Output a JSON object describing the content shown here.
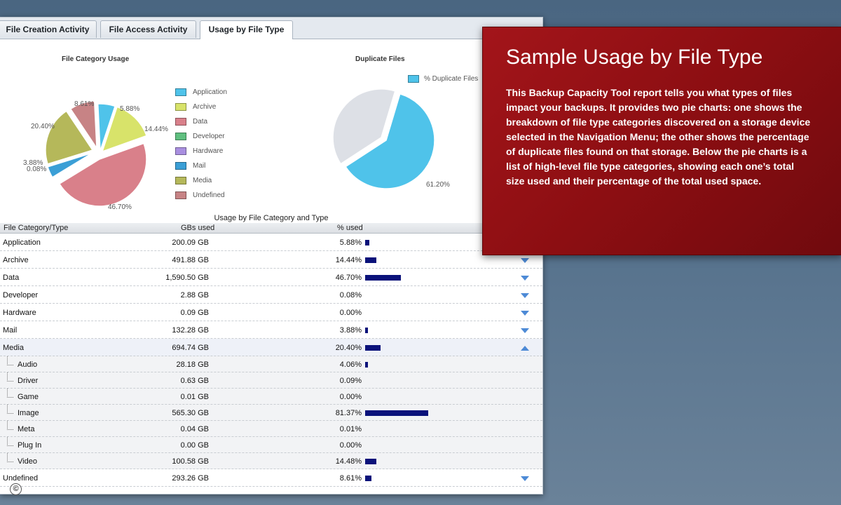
{
  "tabs": [
    {
      "label": "File Creation Activity"
    },
    {
      "label": "File Access Activity"
    },
    {
      "label": "Usage by File Type"
    }
  ],
  "pie1": {
    "title": "File Category Usage",
    "legend": [
      "Application",
      "Archive",
      "Data",
      "Developer",
      "Hardware",
      "Mail",
      "Media",
      "Undefined"
    ],
    "labels": [
      "5.88%",
      "14.44%",
      "46.70%",
      "0.08%",
      "3.88%",
      "20.40%",
      "8.61%"
    ]
  },
  "pie2": {
    "title": "Duplicate Files",
    "legend": "% Duplicate Files",
    "label": "61.20%"
  },
  "chart_data": [
    {
      "type": "pie",
      "title": "File Category Usage",
      "categories": [
        "Application",
        "Archive",
        "Data",
        "Developer",
        "Hardware",
        "Mail",
        "Media",
        "Undefined"
      ],
      "values": [
        5.88,
        14.44,
        46.7,
        0.08,
        0.0,
        3.88,
        20.4,
        8.61
      ],
      "colors": [
        "#4fc3ea",
        "#d8e36a",
        "#d9808a",
        "#5fbf7f",
        "#a98fe0",
        "#3b9fd6",
        "#b5b85a",
        "#c78385"
      ],
      "legend_position": "right"
    },
    {
      "type": "pie",
      "title": "Duplicate Files",
      "categories": [
        "% Duplicate Files",
        ""
      ],
      "values": [
        61.2,
        38.8
      ],
      "colors": [
        "#4fc3ea",
        "#dde0e6"
      ],
      "legend_position": "top-right"
    }
  ],
  "table": {
    "caption": "Usage by File Category and Type",
    "headers": [
      "File Category/Type",
      "GBs used",
      "% used"
    ],
    "rows": [
      {
        "name": "Application",
        "gb": "200.09 GB",
        "pct": "5.88%",
        "value": 5.88,
        "level": 0,
        "toggle": "down"
      },
      {
        "name": "Archive",
        "gb": "491.88 GB",
        "pct": "14.44%",
        "value": 14.44,
        "level": 0,
        "toggle": "down"
      },
      {
        "name": "Data",
        "gb": "1,590.50 GB",
        "pct": "46.70%",
        "value": 46.7,
        "level": 0,
        "toggle": "down"
      },
      {
        "name": "Developer",
        "gb": "2.88 GB",
        "pct": "0.08%",
        "value": 0.08,
        "level": 0,
        "toggle": "down"
      },
      {
        "name": "Hardware",
        "gb": "0.09 GB",
        "pct": "0.00%",
        "value": 0.0,
        "level": 0,
        "toggle": "down"
      },
      {
        "name": "Mail",
        "gb": "132.28 GB",
        "pct": "3.88%",
        "value": 3.88,
        "level": 0,
        "toggle": "down"
      },
      {
        "name": "Media",
        "gb": "694.74 GB",
        "pct": "20.40%",
        "value": 20.4,
        "level": 0,
        "toggle": "up"
      },
      {
        "name": "Audio",
        "gb": "28.18 GB",
        "pct": "4.06%",
        "value": 4.06,
        "level": 1,
        "toggle": ""
      },
      {
        "name": "Driver",
        "gb": "0.63 GB",
        "pct": "0.09%",
        "value": 0.09,
        "level": 1,
        "toggle": ""
      },
      {
        "name": "Game",
        "gb": "0.01 GB",
        "pct": "0.00%",
        "value": 0.0,
        "level": 1,
        "toggle": ""
      },
      {
        "name": "Image",
        "gb": "565.30 GB",
        "pct": "81.37%",
        "value": 81.37,
        "level": 1,
        "toggle": ""
      },
      {
        "name": "Meta",
        "gb": "0.04 GB",
        "pct": "0.01%",
        "value": 0.01,
        "level": 1,
        "toggle": ""
      },
      {
        "name": "Plug In",
        "gb": "0.00 GB",
        "pct": "0.00%",
        "value": 0.0,
        "level": 1,
        "toggle": ""
      },
      {
        "name": "Video",
        "gb": "100.58 GB",
        "pct": "14.48%",
        "value": 14.48,
        "level": 1,
        "toggle": ""
      },
      {
        "name": "Undefined",
        "gb": "293.26 GB",
        "pct": "8.61%",
        "value": 8.61,
        "level": 0,
        "toggle": "down"
      }
    ]
  },
  "callout": {
    "title": "Sample Usage by File Type",
    "body": "This Backup Capacity Tool report tells you what types of files impact your backups.  It provides two pie charts: one shows the breakdown of file type categories discovered on a storage device selected in the Navigation Menu; the other shows the percentage of duplicate files found on that storage. Below the pie charts is a list of high-level file type categories, showing each one’s total size used and their percentage of the total used space."
  },
  "copyright_symbol": "©"
}
